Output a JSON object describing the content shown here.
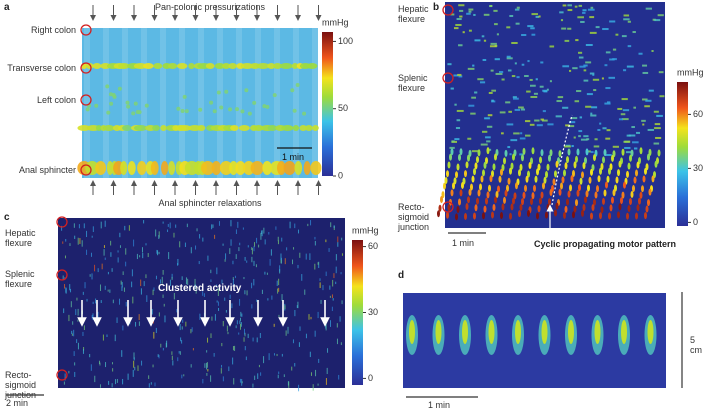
{
  "panel_a": {
    "label": "a",
    "top_annotation": "Pan-colonic pressurizations",
    "bottom_annotation": "Anal sphincter relaxations",
    "regions": [
      "Right colon",
      "Transverse colon",
      "Left colon",
      "Anal sphincter"
    ],
    "scale_bar": "1 min",
    "colorbar": {
      "unit": "mmHg",
      "lim": [
        0,
        107
      ],
      "ticks": [
        0,
        50,
        100
      ]
    }
  },
  "panel_b": {
    "label": "b",
    "regions": [
      "Hepatic flexure",
      "Splenic flexure",
      "Recto-sigmoid junction"
    ],
    "scale_bar": "1 min",
    "annotation": "Cyclic propagating motor pattern",
    "colorbar": {
      "unit": "mmHg",
      "lim": [
        -2,
        78
      ],
      "ticks": [
        0,
        30,
        60
      ]
    }
  },
  "panel_c": {
    "label": "c",
    "regions": [
      "Hepatic flexure",
      "Splenic flexure",
      "Recto-sigmoid junction"
    ],
    "annotation": "Clustered activity",
    "scale_bar": "2 min",
    "colorbar": {
      "unit": "mmHg",
      "lim": [
        -3,
        63
      ],
      "ticks": [
        0,
        30,
        60
      ]
    }
  },
  "panel_d": {
    "label": "d",
    "scale_bar_time": "1 min",
    "scale_bar_length": "5 cm"
  }
}
